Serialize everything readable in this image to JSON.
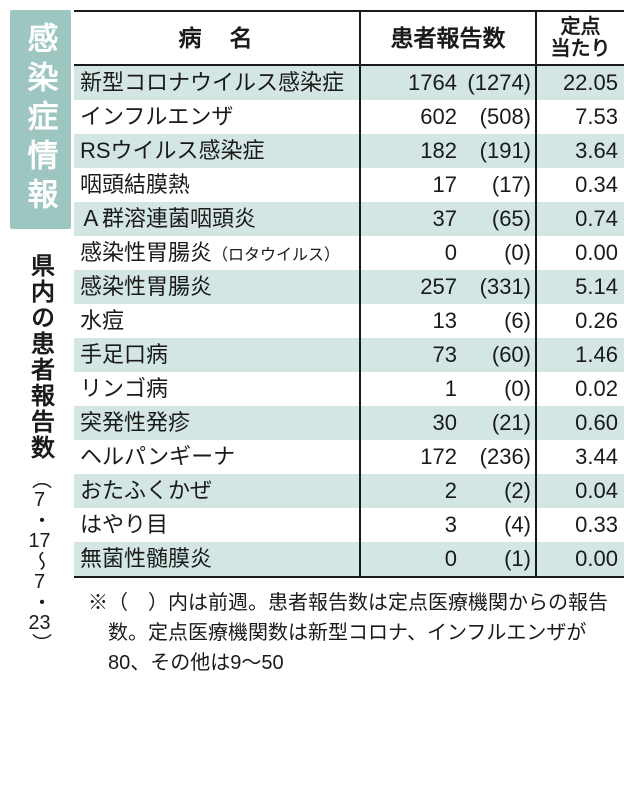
{
  "colors": {
    "accent_bg": "#9ec6c0",
    "accent_fg": "#ffffff",
    "stripe": "#d3e6e3",
    "text": "#1a1a1a",
    "border": "#1a1a1a",
    "page_bg": "#ffffff"
  },
  "left": {
    "badge": "感染症情報",
    "subtitle": "県内の患者報告数",
    "period": {
      "open": "（",
      "m1": "7",
      "dot1": "・",
      "d1": "17",
      "tilde": "〜",
      "m2": "7",
      "dot2": "・",
      "d2": "23",
      "close": "）"
    }
  },
  "table": {
    "type": "table",
    "columns": {
      "name": "病名",
      "count": "患者報告数",
      "rate": "定点\n当たり"
    },
    "col_widths_pct": [
      52,
      32,
      16
    ],
    "header_fontsize": 23,
    "cell_fontsize": 22,
    "rate_decimals": 2,
    "rows": [
      {
        "name": "新型コロナウイルス感染症",
        "count": 1764,
        "prev": 1274,
        "rate": 22.05,
        "stripe": true
      },
      {
        "name": "インフルエンザ",
        "count": 602,
        "prev": 508,
        "rate": 7.53,
        "stripe": false
      },
      {
        "name": "RSウイルス感染症",
        "count": 182,
        "prev": 191,
        "rate": 3.64,
        "stripe": true
      },
      {
        "name": "咽頭結膜熱",
        "count": 17,
        "prev": 17,
        "rate": 0.34,
        "stripe": false
      },
      {
        "name": "Ａ群溶連菌咽頭炎",
        "count": 37,
        "prev": 65,
        "rate": 0.74,
        "stripe": true
      },
      {
        "name": "感染性胃腸炎",
        "name_suffix_small": "（ロタウイルス）",
        "count": 0,
        "prev": 0,
        "rate": 0.0,
        "stripe": false
      },
      {
        "name": "感染性胃腸炎",
        "count": 257,
        "prev": 331,
        "rate": 5.14,
        "stripe": true
      },
      {
        "name": "水痘",
        "count": 13,
        "prev": 6,
        "rate": 0.26,
        "stripe": false
      },
      {
        "name": "手足口病",
        "count": 73,
        "prev": 60,
        "rate": 1.46,
        "stripe": true
      },
      {
        "name": "リンゴ病",
        "count": 1,
        "prev": 0,
        "rate": 0.02,
        "stripe": false
      },
      {
        "name": "突発性発疹",
        "count": 30,
        "prev": 21,
        "rate": 0.6,
        "stripe": true
      },
      {
        "name": "ヘルパンギーナ",
        "count": 172,
        "prev": 236,
        "rate": 3.44,
        "stripe": false
      },
      {
        "name": "おたふくかぜ",
        "count": 2,
        "prev": 2,
        "rate": 0.04,
        "stripe": true
      },
      {
        "name": "はやり目",
        "count": 3,
        "prev": 4,
        "rate": 0.33,
        "stripe": false
      },
      {
        "name": "無菌性髄膜炎",
        "count": 0,
        "prev": 1,
        "rate": 0.0,
        "stripe": true
      }
    ]
  },
  "footnote": "※（　）内は前週。患者報告数は定点医療機関からの報告数。定点医療機関数は新型コロナ、インフルエンザが80、その他は9〜50"
}
